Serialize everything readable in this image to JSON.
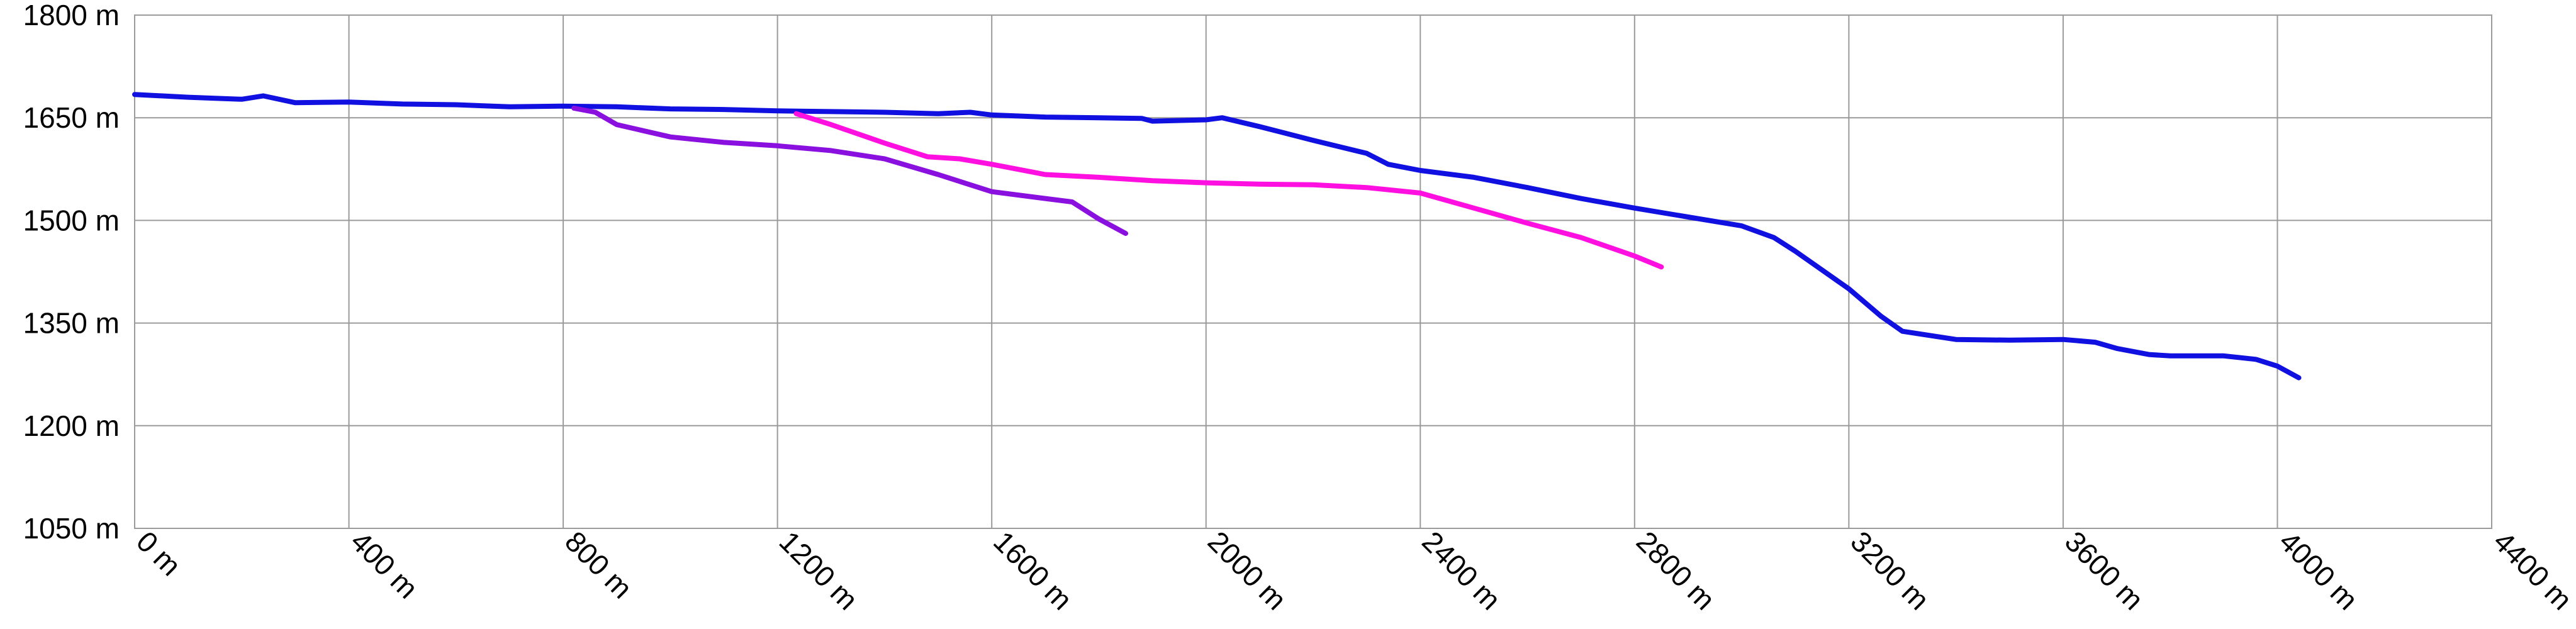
{
  "chart_data": {
    "type": "line",
    "title": "",
    "xlabel": "",
    "ylabel": "",
    "xlim": [
      0,
      4400
    ],
    "ylim": [
      1050,
      1800
    ],
    "x_ticks": [
      0,
      400,
      800,
      1200,
      1600,
      2000,
      2400,
      2800,
      3200,
      3600,
      4000,
      4400
    ],
    "x_tick_labels": [
      "0 m",
      "400 m",
      "800 m",
      "1200 m",
      "1600 m",
      "2000 m",
      "2400 m",
      "2800 m",
      "3200 m",
      "3600 m",
      "4000 m",
      "4400 m"
    ],
    "y_ticks": [
      1050,
      1200,
      1350,
      1500,
      1650,
      1800
    ],
    "y_tick_labels": [
      "1050 m",
      "1200 m",
      "1350 m",
      "1500 m",
      "1650 m",
      "1800 m"
    ],
    "grid": true,
    "legend": "none",
    "series": [
      {
        "color": "#1010e0",
        "points": [
          [
            0,
            1684
          ],
          [
            100,
            1680
          ],
          [
            200,
            1677
          ],
          [
            240,
            1682
          ],
          [
            300,
            1672
          ],
          [
            400,
            1673
          ],
          [
            500,
            1670
          ],
          [
            600,
            1669
          ],
          [
            700,
            1666
          ],
          [
            800,
            1667
          ],
          [
            900,
            1666
          ],
          [
            1000,
            1663
          ],
          [
            1100,
            1662
          ],
          [
            1200,
            1660
          ],
          [
            1300,
            1659
          ],
          [
            1400,
            1658
          ],
          [
            1500,
            1656
          ],
          [
            1560,
            1658
          ],
          [
            1600,
            1654
          ],
          [
            1700,
            1651
          ],
          [
            1800,
            1650
          ],
          [
            1880,
            1649
          ],
          [
            1900,
            1645
          ],
          [
            2000,
            1647
          ],
          [
            2030,
            1650
          ],
          [
            2100,
            1637
          ],
          [
            2200,
            1617
          ],
          [
            2300,
            1598
          ],
          [
            2340,
            1582
          ],
          [
            2400,
            1573
          ],
          [
            2500,
            1563
          ],
          [
            2600,
            1548
          ],
          [
            2700,
            1532
          ],
          [
            2800,
            1518
          ],
          [
            2900,
            1505
          ],
          [
            3000,
            1492
          ],
          [
            3060,
            1475
          ],
          [
            3100,
            1455
          ],
          [
            3200,
            1400
          ],
          [
            3260,
            1360
          ],
          [
            3300,
            1338
          ],
          [
            3400,
            1326
          ],
          [
            3500,
            1325
          ],
          [
            3600,
            1326
          ],
          [
            3660,
            1322
          ],
          [
            3700,
            1313
          ],
          [
            3760,
            1304
          ],
          [
            3800,
            1302
          ],
          [
            3900,
            1302
          ],
          [
            3960,
            1297
          ],
          [
            4000,
            1287
          ],
          [
            4040,
            1270
          ]
        ]
      },
      {
        "color": "#ff10e0",
        "points": [
          [
            1235,
            1656
          ],
          [
            1300,
            1640
          ],
          [
            1400,
            1613
          ],
          [
            1480,
            1593
          ],
          [
            1540,
            1590
          ],
          [
            1600,
            1582
          ],
          [
            1700,
            1567
          ],
          [
            1800,
            1563
          ],
          [
            1900,
            1558
          ],
          [
            2000,
            1555
          ],
          [
            2100,
            1553
          ],
          [
            2200,
            1552
          ],
          [
            2300,
            1548
          ],
          [
            2400,
            1540
          ],
          [
            2500,
            1518
          ],
          [
            2600,
            1496
          ],
          [
            2700,
            1475
          ],
          [
            2800,
            1448
          ],
          [
            2850,
            1432
          ]
        ]
      },
      {
        "color": "#8a10e0",
        "points": [
          [
            820,
            1664
          ],
          [
            860,
            1658
          ],
          [
            900,
            1640
          ],
          [
            1000,
            1622
          ],
          [
            1100,
            1614
          ],
          [
            1200,
            1609
          ],
          [
            1300,
            1602
          ],
          [
            1400,
            1590
          ],
          [
            1500,
            1567
          ],
          [
            1600,
            1542
          ],
          [
            1700,
            1532
          ],
          [
            1750,
            1527
          ],
          [
            1800,
            1502
          ],
          [
            1850,
            1481
          ]
        ]
      }
    ]
  }
}
